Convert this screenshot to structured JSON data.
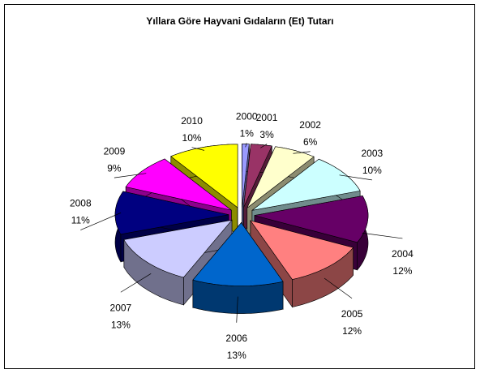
{
  "chart_data": {
    "type": "pie",
    "title": "Yıllara Göre Hayvani Gıdaların (Et) Tutarı",
    "categories": [
      "2000",
      "2001",
      "2002",
      "2003",
      "2004",
      "2005",
      "2006",
      "2007",
      "2008",
      "2009",
      "2010"
    ],
    "values": [
      1,
      3,
      6,
      10,
      12,
      12,
      13,
      13,
      11,
      9,
      10
    ],
    "value_labels": [
      "1%",
      "3%",
      "6%",
      "10%",
      "12%",
      "12%",
      "13%",
      "13%",
      "11%",
      "9%",
      "10%"
    ],
    "colors": [
      "#9999ff",
      "#993366",
      "#ffffcc",
      "#ccffff",
      "#660066",
      "#ff8080",
      "#0066cc",
      "#ccccff",
      "#000080",
      "#ff00ff",
      "#ffff00"
    ]
  }
}
